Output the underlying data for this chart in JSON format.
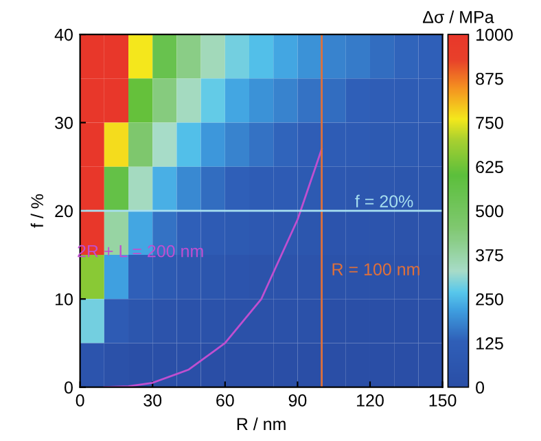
{
  "chart_data": {
    "type": "heatmap",
    "xlabel": "R / nm",
    "ylabel": "f / %",
    "clabel": "Δσ / MPa",
    "x": [
      5,
      15,
      25,
      35,
      45,
      55,
      65,
      75,
      85,
      95,
      105,
      115,
      125,
      135,
      145
    ],
    "y": [
      37.5,
      32.5,
      27.5,
      22.5,
      17.5,
      12.5,
      7.5,
      2.5
    ],
    "xlim": [
      0,
      150
    ],
    "xticks": [
      0,
      30,
      60,
      90,
      120,
      150
    ],
    "ylim": [
      0,
      40
    ],
    "yticks": [
      0,
      10,
      20,
      30,
      40
    ],
    "clim": [
      0,
      1000
    ],
    "cticks": [
      0,
      125,
      250,
      375,
      500,
      625,
      750,
      875,
      1000
    ],
    "cells": [
      [
        1000,
        1000,
        760,
        550,
        420,
        350,
        290,
        260,
        230,
        200,
        180,
        170,
        150,
        140,
        130
      ],
      [
        1000,
        1000,
        610,
        430,
        340,
        280,
        230,
        200,
        180,
        160,
        150,
        130,
        120,
        110,
        110
      ],
      [
        1000,
        770,
        460,
        330,
        260,
        210,
        180,
        160,
        140,
        120,
        110,
        100,
        90,
        90,
        80
      ],
      [
        1000,
        570,
        340,
        240,
        190,
        150,
        130,
        110,
        100,
        90,
        80,
        70,
        70,
        60,
        60
      ],
      [
        1000,
        380,
        230,
        160,
        130,
        100,
        90,
        80,
        70,
        60,
        50,
        50,
        50,
        40,
        40
      ],
      [
        660,
        220,
        130,
        90,
        70,
        60,
        50,
        40,
        40,
        40,
        30,
        30,
        30,
        20,
        20
      ],
      [
        290,
        100,
        60,
        40,
        30,
        30,
        20,
        20,
        20,
        20,
        10,
        10,
        10,
        10,
        10
      ],
      [
        50,
        20,
        10,
        10,
        10,
        0,
        0,
        0,
        0,
        0,
        0,
        0,
        0,
        0,
        0
      ]
    ],
    "series": [
      {
        "type": "line",
        "name": "2R + L = 200 nm",
        "color": "#c04fd0",
        "x": [
          10,
          20,
          30,
          45,
          60,
          75,
          90,
          100
        ],
        "values": [
          0,
          0.1,
          0.5,
          2,
          5,
          10,
          19,
          27
        ]
      }
    ],
    "ref_lines": [
      {
        "axis": "x",
        "value": 100,
        "label": "R = 100 nm",
        "color": "#e0703a"
      },
      {
        "axis": "y",
        "value": 20,
        "label": "f = 20%",
        "color": "#a8e0f0"
      }
    ]
  }
}
